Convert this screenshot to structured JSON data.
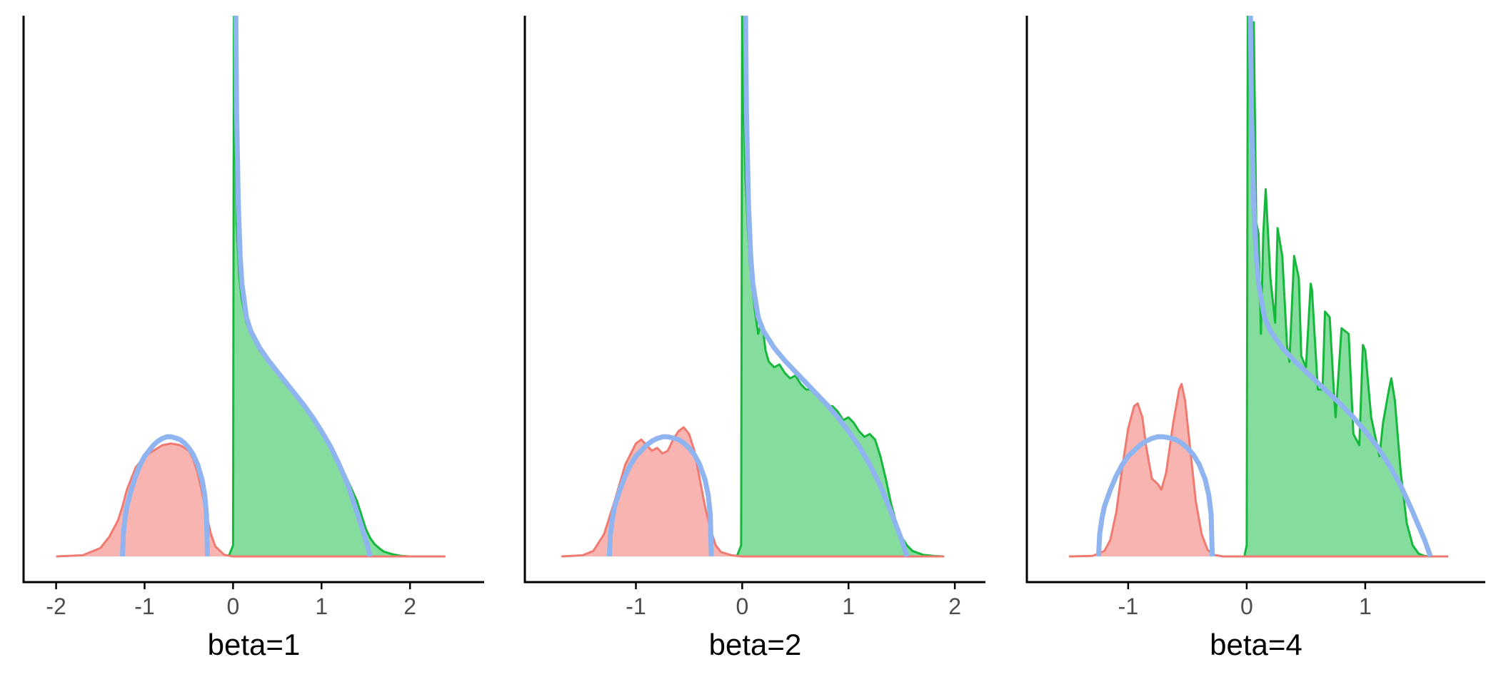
{
  "figure": {
    "colors": {
      "red_fill": "#F8B4B0",
      "red_line": "#F07A70",
      "green_fill": "#84DD9C",
      "green_line": "#16B83C",
      "blue_curve": "#8FB4F0",
      "axis": "#000000",
      "tick_text": "#4D4D4D",
      "label_text": "#000000"
    },
    "grid": false,
    "legend": "none"
  },
  "chart_data": [
    {
      "type": "area",
      "xlabel": "beta=1",
      "ylabel": "",
      "xlim": [
        -2.15,
        2.62
      ],
      "ylim": [
        -0.05,
        1.0
      ],
      "xticks": [
        -2,
        -1,
        0,
        1,
        2
      ],
      "xtick_labels": [
        "-2",
        "-1",
        "0",
        "1",
        "2"
      ],
      "series": [
        {
          "role": "red_density",
          "x": [
            -2.0,
            -1.7,
            -1.5,
            -1.4,
            -1.3,
            -1.25,
            -1.2,
            -1.1,
            -1.0,
            -0.9,
            -0.8,
            -0.7,
            -0.6,
            -0.5,
            -0.45,
            -0.4,
            -0.35,
            -0.3,
            -0.25,
            -0.2,
            -0.1,
            0.0,
            0.5,
            1.0,
            2.0,
            2.4
          ],
          "y": [
            0,
            0.002,
            0.015,
            0.035,
            0.065,
            0.09,
            0.12,
            0.16,
            0.18,
            0.19,
            0.2,
            0.203,
            0.2,
            0.19,
            0.175,
            0.15,
            0.115,
            0.075,
            0.04,
            0.018,
            0.003,
            0,
            0,
            0,
            0,
            0
          ]
        },
        {
          "role": "green_density",
          "x": [
            -0.05,
            0.0,
            0.01,
            0.02,
            0.04,
            0.07,
            0.1,
            0.15,
            0.2,
            0.25,
            0.3,
            0.4,
            0.5,
            0.6,
            0.7,
            0.8,
            0.9,
            1.0,
            1.1,
            1.2,
            1.3,
            1.4,
            1.45,
            1.5,
            1.55,
            1.6,
            1.65,
            1.7,
            1.8,
            1.9,
            2.0,
            2.4
          ],
          "y": [
            0,
            0.02,
            1.05,
            0.85,
            0.6,
            0.5,
            0.46,
            0.42,
            0.4,
            0.385,
            0.37,
            0.35,
            0.33,
            0.31,
            0.29,
            0.27,
            0.25,
            0.225,
            0.2,
            0.17,
            0.135,
            0.1,
            0.075,
            0.05,
            0.033,
            0.022,
            0.015,
            0.009,
            0.004,
            0.001,
            0,
            0
          ]
        },
        {
          "role": "blue_theory_left",
          "x": [
            -1.25,
            -1.24,
            -1.22,
            -1.2,
            -1.15,
            -1.1,
            -1.05,
            -1.0,
            -0.95,
            -0.9,
            -0.85,
            -0.8,
            -0.75,
            -0.7,
            -0.65,
            -0.6,
            -0.55,
            -0.5,
            -0.45,
            -0.4,
            -0.35,
            -0.32,
            -0.3,
            -0.29
          ],
          "y": [
            0,
            0.04,
            0.07,
            0.09,
            0.12,
            0.145,
            0.165,
            0.18,
            0.19,
            0.2,
            0.207,
            0.212,
            0.215,
            0.215,
            0.213,
            0.21,
            0.204,
            0.195,
            0.183,
            0.165,
            0.138,
            0.11,
            0.075,
            0
          ]
        },
        {
          "role": "blue_theory_right",
          "x": [
            0.02,
            0.03,
            0.04,
            0.06,
            0.08,
            0.1,
            0.15,
            0.2,
            0.25,
            0.3,
            0.4,
            0.5,
            0.6,
            0.7,
            0.8,
            0.9,
            1.0,
            1.1,
            1.2,
            1.3,
            1.4,
            1.45,
            1.5,
            1.53,
            1.55
          ],
          "y": [
            1.1,
            1.0,
            0.8,
            0.63,
            0.54,
            0.49,
            0.43,
            0.405,
            0.39,
            0.375,
            0.352,
            0.332,
            0.312,
            0.292,
            0.272,
            0.25,
            0.225,
            0.198,
            0.165,
            0.127,
            0.08,
            0.055,
            0.03,
            0.012,
            0
          ]
        }
      ]
    },
    {
      "type": "area",
      "xlabel": "beta=2",
      "ylabel": "",
      "xlim": [
        -1.85,
        2.1
      ],
      "ylim": [
        -0.05,
        1.0
      ],
      "xticks": [
        -1,
        0,
        1,
        2
      ],
      "xtick_labels": [
        "-1",
        "0",
        "1",
        "2"
      ],
      "series": [
        {
          "role": "red_density",
          "x": [
            -1.7,
            -1.5,
            -1.4,
            -1.3,
            -1.2,
            -1.1,
            -1.0,
            -0.95,
            -0.9,
            -0.85,
            -0.8,
            -0.75,
            -0.7,
            -0.65,
            -0.6,
            -0.55,
            -0.5,
            -0.45,
            -0.4,
            -0.35,
            -0.3,
            -0.25,
            -0.2,
            -0.1,
            0.0,
            1.0,
            1.9
          ],
          "y": [
            0,
            0.002,
            0.01,
            0.04,
            0.1,
            0.165,
            0.203,
            0.21,
            0.2,
            0.19,
            0.195,
            0.185,
            0.19,
            0.21,
            0.225,
            0.232,
            0.22,
            0.19,
            0.14,
            0.09,
            0.05,
            0.02,
            0.008,
            0.002,
            0,
            0,
            0
          ]
        },
        {
          "role": "green_density",
          "x": [
            -0.05,
            -0.01,
            0.0,
            0.01,
            0.03,
            0.05,
            0.07,
            0.09,
            0.12,
            0.15,
            0.18,
            0.2,
            0.22,
            0.25,
            0.3,
            0.35,
            0.4,
            0.45,
            0.5,
            0.55,
            0.6,
            0.65,
            0.7,
            0.75,
            0.8,
            0.85,
            0.9,
            0.95,
            1.0,
            1.05,
            1.1,
            1.15,
            1.2,
            1.25,
            1.3,
            1.35,
            1.4,
            1.45,
            1.5,
            1.55,
            1.6,
            1.7,
            1.8,
            1.9
          ],
          "y": [
            0,
            0.02,
            1.05,
            0.85,
            0.68,
            0.6,
            0.53,
            0.49,
            0.44,
            0.4,
            0.42,
            0.4,
            0.37,
            0.35,
            0.34,
            0.345,
            0.33,
            0.32,
            0.325,
            0.31,
            0.3,
            0.3,
            0.29,
            0.28,
            0.27,
            0.27,
            0.26,
            0.245,
            0.25,
            0.24,
            0.225,
            0.215,
            0.22,
            0.21,
            0.18,
            0.14,
            0.095,
            0.06,
            0.035,
            0.02,
            0.01,
            0.003,
            0.001,
            0
          ]
        },
        {
          "role": "blue_theory_left",
          "x": [
            -1.25,
            -1.24,
            -1.22,
            -1.2,
            -1.15,
            -1.1,
            -1.05,
            -1.0,
            -0.95,
            -0.9,
            -0.85,
            -0.8,
            -0.75,
            -0.7,
            -0.65,
            -0.6,
            -0.55,
            -0.5,
            -0.45,
            -0.4,
            -0.35,
            -0.32,
            -0.3,
            -0.29
          ],
          "y": [
            0,
            0.04,
            0.07,
            0.09,
            0.12,
            0.145,
            0.165,
            0.18,
            0.19,
            0.2,
            0.207,
            0.212,
            0.215,
            0.215,
            0.213,
            0.21,
            0.204,
            0.195,
            0.183,
            0.165,
            0.138,
            0.11,
            0.075,
            0
          ]
        },
        {
          "role": "blue_theory_right",
          "x": [
            0.02,
            0.03,
            0.04,
            0.06,
            0.08,
            0.1,
            0.15,
            0.2,
            0.25,
            0.3,
            0.4,
            0.5,
            0.6,
            0.7,
            0.8,
            0.9,
            1.0,
            1.1,
            1.2,
            1.3,
            1.4,
            1.45,
            1.5,
            1.53,
            1.55
          ],
          "y": [
            1.1,
            1.0,
            0.8,
            0.63,
            0.54,
            0.49,
            0.43,
            0.405,
            0.39,
            0.375,
            0.352,
            0.332,
            0.312,
            0.292,
            0.272,
            0.25,
            0.225,
            0.198,
            0.165,
            0.127,
            0.08,
            0.055,
            0.03,
            0.012,
            0
          ]
        }
      ]
    },
    {
      "type": "area",
      "xlabel": "beta=4",
      "ylabel": "",
      "xlim": [
        -1.68,
        1.85
      ],
      "ylim": [
        -0.05,
        1.0
      ],
      "xticks": [
        -1,
        0,
        1
      ],
      "xtick_labels": [
        "-1",
        "0",
        "1"
      ],
      "series": [
        {
          "role": "red_density",
          "x": [
            -1.5,
            -1.3,
            -1.2,
            -1.15,
            -1.1,
            -1.05,
            -1.0,
            -0.95,
            -0.92,
            -0.88,
            -0.85,
            -0.8,
            -0.75,
            -0.72,
            -0.68,
            -0.62,
            -0.57,
            -0.55,
            -0.52,
            -0.48,
            -0.43,
            -0.38,
            -0.33,
            -0.28,
            -0.2,
            0.0,
            1.0,
            1.7
          ],
          "y": [
            0,
            0.001,
            0.01,
            0.03,
            0.08,
            0.16,
            0.23,
            0.27,
            0.275,
            0.25,
            0.2,
            0.14,
            0.13,
            0.12,
            0.15,
            0.24,
            0.3,
            0.31,
            0.28,
            0.2,
            0.1,
            0.04,
            0.012,
            0.003,
            0,
            0,
            0,
            0
          ]
        },
        {
          "role": "green_density",
          "x": [
            -0.02,
            0.0,
            0.01,
            0.02,
            0.04,
            0.05,
            0.06,
            0.08,
            0.1,
            0.12,
            0.14,
            0.16,
            0.2,
            0.24,
            0.26,
            0.3,
            0.34,
            0.36,
            0.4,
            0.44,
            0.46,
            0.5,
            0.54,
            0.55,
            0.6,
            0.64,
            0.66,
            0.7,
            0.74,
            0.75,
            0.8,
            0.86,
            0.9,
            0.95,
            0.98,
            1.0,
            1.05,
            1.1,
            1.12,
            1.15,
            1.2,
            1.22,
            1.25,
            1.3,
            1.35,
            1.4,
            1.45,
            1.5,
            1.55,
            1.6,
            1.7
          ],
          "y": [
            0,
            0.02,
            1.05,
            0.9,
            0.72,
            0.66,
            0.96,
            0.6,
            0.58,
            0.4,
            0.58,
            0.66,
            0.5,
            0.42,
            0.59,
            0.54,
            0.38,
            0.35,
            0.54,
            0.5,
            0.36,
            0.34,
            0.49,
            0.48,
            0.3,
            0.3,
            0.44,
            0.43,
            0.28,
            0.25,
            0.41,
            0.4,
            0.22,
            0.2,
            0.38,
            0.37,
            0.25,
            0.2,
            0.18,
            0.24,
            0.3,
            0.32,
            0.28,
            0.15,
            0.06,
            0.02,
            0.005,
            0.001,
            0,
            0,
            0
          ]
        },
        {
          "role": "blue_theory_left",
          "x": [
            -1.25,
            -1.24,
            -1.22,
            -1.2,
            -1.15,
            -1.1,
            -1.05,
            -1.0,
            -0.95,
            -0.9,
            -0.85,
            -0.8,
            -0.75,
            -0.7,
            -0.65,
            -0.6,
            -0.55,
            -0.5,
            -0.45,
            -0.4,
            -0.35,
            -0.32,
            -0.3,
            -0.29
          ],
          "y": [
            0,
            0.04,
            0.07,
            0.09,
            0.12,
            0.145,
            0.165,
            0.18,
            0.19,
            0.2,
            0.207,
            0.212,
            0.215,
            0.215,
            0.213,
            0.21,
            0.204,
            0.195,
            0.183,
            0.165,
            0.138,
            0.11,
            0.075,
            0
          ]
        },
        {
          "role": "blue_theory_right",
          "x": [
            0.02,
            0.03,
            0.04,
            0.06,
            0.08,
            0.1,
            0.15,
            0.2,
            0.25,
            0.3,
            0.4,
            0.5,
            0.6,
            0.7,
            0.8,
            0.9,
            1.0,
            1.1,
            1.2,
            1.3,
            1.4,
            1.45,
            1.5,
            1.53,
            1.55
          ],
          "y": [
            1.1,
            1.0,
            0.8,
            0.63,
            0.54,
            0.49,
            0.43,
            0.405,
            0.39,
            0.375,
            0.352,
            0.332,
            0.312,
            0.292,
            0.272,
            0.25,
            0.225,
            0.198,
            0.165,
            0.127,
            0.08,
            0.055,
            0.03,
            0.012,
            0
          ]
        }
      ]
    }
  ]
}
